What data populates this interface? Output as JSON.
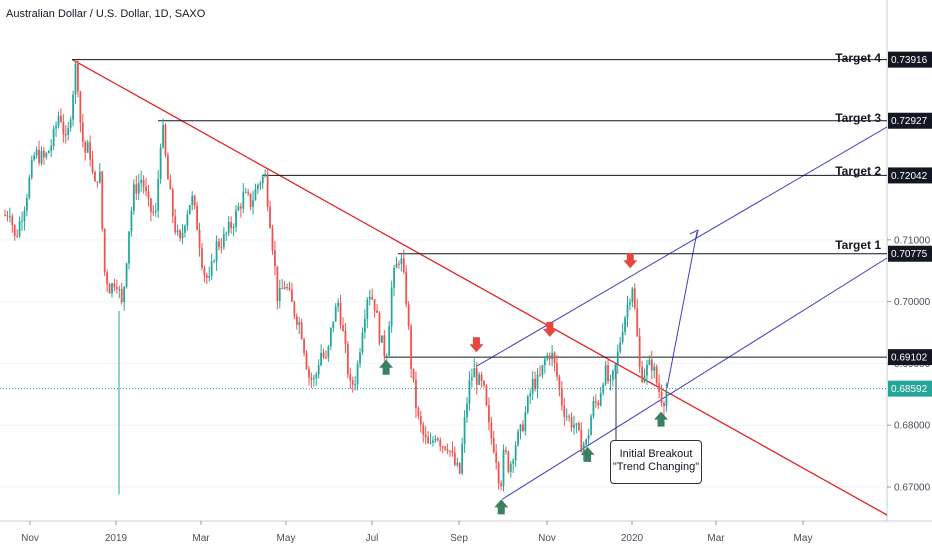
{
  "chart_title": "Australian Dollar / U.S. Dollar, 1D, SAXO",
  "colors": {
    "up": "#26a69a",
    "down": "#ef5350",
    "trend_red": "#e52222",
    "channel_blue": "#3f3fc8",
    "current_price_line": "#26a69a",
    "arrow_up": "#3d7f63",
    "arrow_down": "#e5473f"
  },
  "chart_data": {
    "type": "candlestick",
    "title": "Australian Dollar / U.S. Dollar, 1D, SAXO",
    "x_axis": {
      "ticks": [
        "Nov",
        "2019",
        "Mar",
        "May",
        "Jul",
        "Sep",
        "Nov",
        "2020",
        "Mar",
        "May"
      ]
    },
    "y_axis": {
      "ticks": [
        "0.67000",
        "0.68000",
        "0.69000",
        "0.70000",
        "0.71000"
      ],
      "range": [
        0.6645,
        0.748
      ],
      "position": "right"
    },
    "current_price": "0.68592",
    "target_levels": [
      {
        "label": "Target 4",
        "price": "0.73916"
      },
      {
        "label": "Target 3",
        "price": "0.72927"
      },
      {
        "label": "Target 2",
        "price": "0.72042"
      },
      {
        "label": "Target 1",
        "price": "0.70775"
      }
    ],
    "support_level": {
      "price": "0.69102"
    },
    "annotation": {
      "line1": "Initial Breakout",
      "line2": "\"Trend Changing\""
    },
    "path_points": [
      [
        0,
        0.714
      ],
      [
        5,
        0.715
      ],
      [
        10,
        0.71
      ],
      [
        20,
        0.716
      ],
      [
        30,
        0.724
      ],
      [
        40,
        0.723
      ],
      [
        48,
        0.726
      ],
      [
        55,
        0.731
      ],
      [
        62,
        0.725
      ],
      [
        67,
        0.732
      ],
      [
        72,
        0.7392
      ],
      [
        76,
        0.729
      ],
      [
        80,
        0.724
      ],
      [
        85,
        0.725
      ],
      [
        90,
        0.718
      ],
      [
        95,
        0.722
      ],
      [
        100,
        0.705
      ],
      [
        106,
        0.702
      ],
      [
        112,
        0.704
      ],
      [
        118,
        0.699
      ],
      [
        125,
        0.712
      ],
      [
        130,
        0.718
      ],
      [
        138,
        0.72
      ],
      [
        145,
        0.715
      ],
      [
        152,
        0.714
      ],
      [
        158,
        0.7293
      ],
      [
        163,
        0.721
      ],
      [
        170,
        0.713
      ],
      [
        176,
        0.709
      ],
      [
        182,
        0.714
      ],
      [
        188,
        0.717
      ],
      [
        194,
        0.712
      ],
      [
        200,
        0.705
      ],
      [
        206,
        0.703
      ],
      [
        212,
        0.709
      ],
      [
        220,
        0.71
      ],
      [
        230,
        0.713
      ],
      [
        240,
        0.717
      ],
      [
        248,
        0.716
      ],
      [
        256,
        0.7195
      ],
      [
        262,
        0.7204
      ],
      [
        268,
        0.712
      ],
      [
        275,
        0.7
      ],
      [
        282,
        0.703
      ],
      [
        290,
        0.699
      ],
      [
        298,
        0.696
      ],
      [
        306,
        0.688
      ],
      [
        312,
        0.687
      ],
      [
        318,
        0.692
      ],
      [
        324,
        0.69
      ],
      [
        330,
        0.697
      ],
      [
        336,
        0.7
      ],
      [
        342,
        0.693
      ],
      [
        348,
        0.686
      ],
      [
        354,
        0.688
      ],
      [
        360,
        0.696
      ],
      [
        366,
        0.702
      ],
      [
        372,
        0.7
      ],
      [
        378,
        0.694
      ],
      [
        384,
        0.691
      ],
      [
        390,
        0.703
      ],
      [
        398,
        0.7078
      ],
      [
        404,
        0.701
      ],
      [
        410,
        0.688
      ],
      [
        416,
        0.681
      ],
      [
        422,
        0.678
      ],
      [
        428,
        0.676
      ],
      [
        434,
        0.679
      ],
      [
        440,
        0.677
      ],
      [
        446,
        0.677
      ],
      [
        452,
        0.674
      ],
      [
        458,
        0.672
      ],
      [
        462,
        0.679
      ],
      [
        467,
        0.686
      ],
      [
        472,
        0.689
      ],
      [
        477,
        0.687
      ],
      [
        482,
        0.686
      ],
      [
        488,
        0.679
      ],
      [
        494,
        0.676
      ],
      [
        499,
        0.67
      ],
      [
        503,
        0.676
      ],
      [
        508,
        0.673
      ],
      [
        514,
        0.677
      ],
      [
        520,
        0.679
      ],
      [
        526,
        0.683
      ],
      [
        532,
        0.687
      ],
      [
        538,
        0.687
      ],
      [
        544,
        0.6905
      ],
      [
        550,
        0.692
      ],
      [
        556,
        0.688
      ],
      [
        562,
        0.683
      ],
      [
        568,
        0.681
      ],
      [
        574,
        0.68
      ],
      [
        580,
        0.677
      ],
      [
        586,
        0.677
      ],
      [
        592,
        0.683
      ],
      [
        598,
        0.684
      ],
      [
        604,
        0.689
      ],
      [
        610,
        0.686
      ],
      [
        616,
        0.69
      ],
      [
        622,
        0.696
      ],
      [
        628,
        0.7
      ],
      [
        632,
        0.703
      ],
      [
        636,
        0.696
      ],
      [
        640,
        0.688
      ],
      [
        646,
        0.689
      ],
      [
        652,
        0.69
      ],
      [
        658,
        0.686
      ],
      [
        663,
        0.684
      ],
      [
        667,
        0.6859
      ]
    ]
  },
  "annotations": {
    "up_arrows": [
      {
        "x": 384,
        "y": 0.6906
      },
      {
        "x": 500,
        "y": 0.668
      },
      {
        "x": 587,
        "y": 0.6765
      },
      {
        "x": 661,
        "y": 0.6822
      }
    ],
    "down_arrows": [
      {
        "x": 475,
        "y": 0.6918
      },
      {
        "x": 549,
        "y": 0.6943
      },
      {
        "x": 630,
        "y": 0.7054
      }
    ]
  }
}
